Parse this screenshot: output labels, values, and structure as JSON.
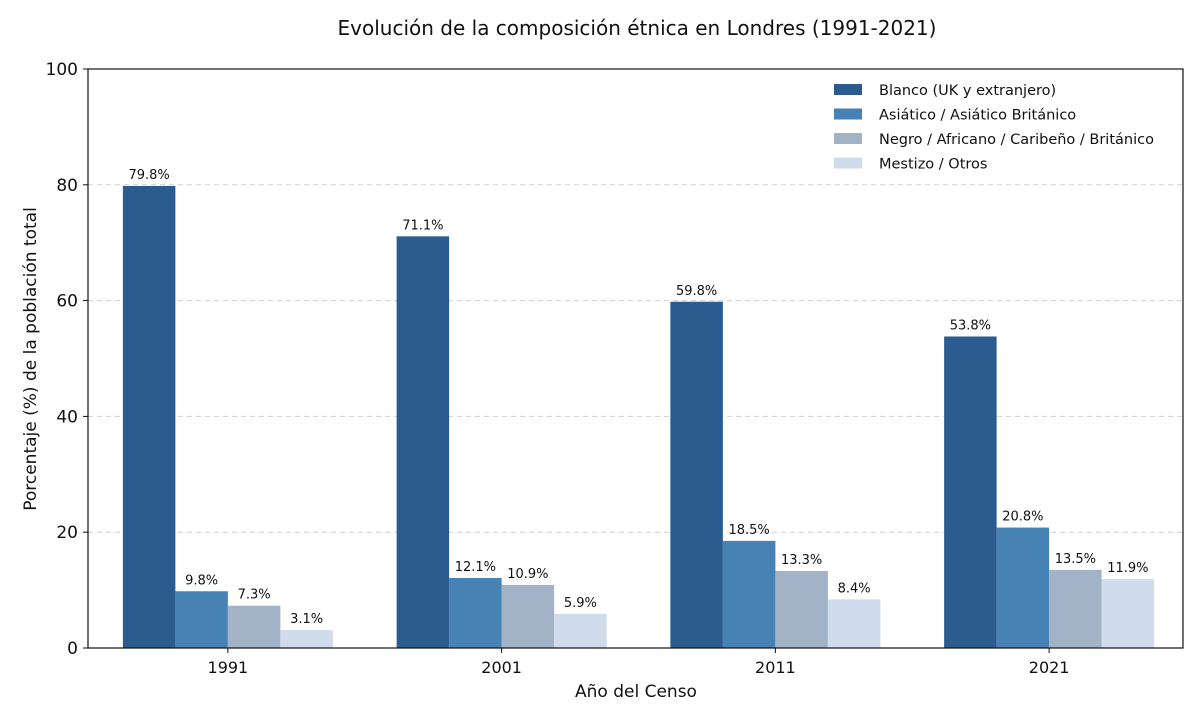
{
  "chart_data": {
    "type": "bar",
    "title": "Evolución de la composición étnica en Londres (1991-2021)",
    "xlabel": "Año del Censo",
    "ylabel": "Porcentaje (%) de la población total",
    "categories": [
      "1991",
      "2001",
      "2011",
      "2021"
    ],
    "ylim": [
      0,
      100
    ],
    "yticks": [
      0,
      20,
      40,
      60,
      80,
      100
    ],
    "grid": "horizontal-dashed",
    "legend_position": "top-right",
    "series": [
      {
        "name": "Blanco (UK y extranjero)",
        "color": "#2b5b8f",
        "values": [
          79.8,
          71.1,
          59.8,
          53.8
        ],
        "labels": [
          "79.8%",
          "71.1%",
          "59.8%",
          "53.8%"
        ]
      },
      {
        "name": "Asiático / Asiático Británico",
        "color": "#4682b4",
        "values": [
          9.8,
          12.1,
          18.5,
          20.8
        ],
        "labels": [
          "9.8%",
          "12.1%",
          "18.5%",
          "20.8%"
        ]
      },
      {
        "name": "Negro / Africano / Caribeño / Británico",
        "color": "#a2b3c7",
        "values": [
          7.3,
          10.9,
          13.3,
          13.5
        ],
        "labels": [
          "7.3%",
          "10.9%",
          "13.3%",
          "13.5%"
        ]
      },
      {
        "name": "Mestizo / Otros",
        "color": "#d0dbec",
        "values": [
          3.1,
          5.9,
          8.4,
          11.9
        ],
        "labels": [
          "3.1%",
          "5.9%",
          "8.4%",
          "11.9%"
        ]
      }
    ]
  }
}
